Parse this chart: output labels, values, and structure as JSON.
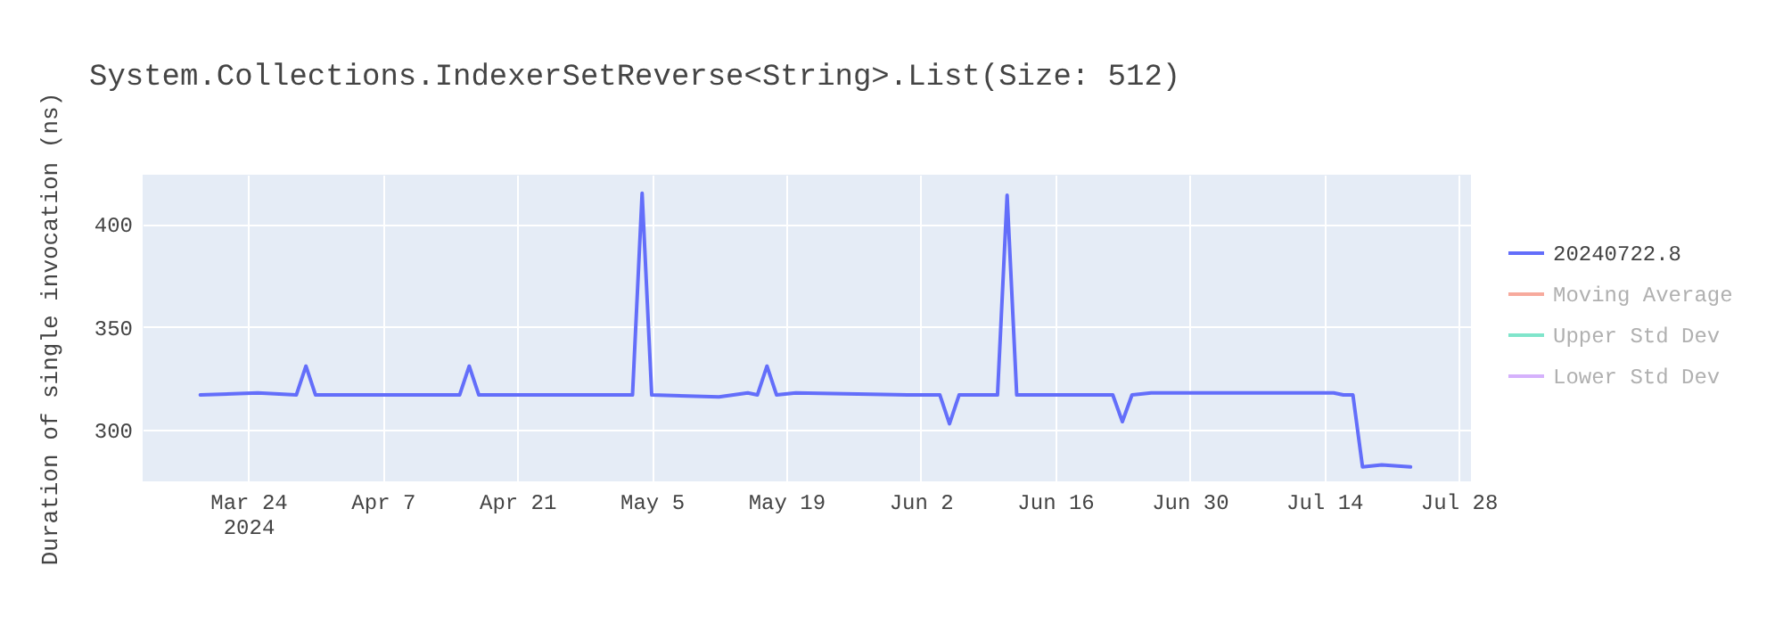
{
  "chart_data": {
    "type": "line",
    "title": "System.Collections.IndexerSetReverse<String>.List(Size: 512)",
    "ylabel": "Duration of single invocation (ns)",
    "x": [
      "2024-03-19",
      "2024-03-25",
      "2024-03-29",
      "2024-03-30",
      "2024-03-31",
      "2024-04-10",
      "2024-04-15",
      "2024-04-16",
      "2024-04-17",
      "2024-04-28",
      "2024-05-03",
      "2024-05-04",
      "2024-05-05",
      "2024-05-12",
      "2024-05-15",
      "2024-05-16",
      "2024-05-17",
      "2024-05-18",
      "2024-05-20",
      "2024-06-01",
      "2024-06-04",
      "2024-06-05",
      "2024-06-06",
      "2024-06-10",
      "2024-06-11",
      "2024-06-12",
      "2024-06-22",
      "2024-06-23",
      "2024-06-24",
      "2024-06-26",
      "2024-07-15",
      "2024-07-16",
      "2024-07-17",
      "2024-07-18",
      "2024-07-20",
      "2024-07-23"
    ],
    "series": [
      {
        "name": "20240722.8",
        "color": "#636efa",
        "values": [
          317,
          318,
          317,
          331,
          317,
          317,
          317,
          331,
          317,
          317,
          317,
          415,
          317,
          316,
          318,
          317,
          331,
          317,
          318,
          317,
          317,
          303,
          317,
          317,
          414,
          317,
          317,
          304,
          317,
          318,
          318,
          317,
          317,
          282,
          283,
          282
        ]
      },
      {
        "name": "Moving Average",
        "color": "#f7aa9d",
        "values": [
          null,
          null,
          null,
          null,
          null,
          null,
          null,
          null,
          null,
          null,
          null,
          null,
          null,
          null,
          null,
          null,
          null,
          null,
          null,
          null,
          null,
          null,
          null,
          null,
          null,
          null,
          null,
          null,
          null,
          null,
          null,
          null,
          null,
          null,
          null,
          null
        ]
      },
      {
        "name": "Upper Std Dev",
        "color": "#80e5cb",
        "values": [
          null,
          null,
          null,
          null,
          null,
          null,
          null,
          null,
          null,
          null,
          null,
          null,
          null,
          null,
          null,
          null,
          null,
          null,
          null,
          null,
          null,
          null,
          null,
          null,
          null,
          null,
          null,
          null,
          null,
          null,
          null,
          null,
          null,
          null,
          null,
          null
        ]
      },
      {
        "name": "Lower Std Dev",
        "color": "#d5b1fc",
        "values": [
          null,
          null,
          null,
          null,
          null,
          null,
          null,
          null,
          null,
          null,
          null,
          null,
          null,
          null,
          null,
          null,
          null,
          null,
          null,
          null,
          null,
          null,
          null,
          null,
          null,
          null,
          null,
          null,
          null,
          null,
          null,
          null,
          null,
          null,
          null,
          null
        ]
      }
    ],
    "xlim": [
      "2024-03-13",
      "2024-07-29T07:00"
    ],
    "xticks": [
      {
        "value": "2024-03-24",
        "label": "Mar 24\n2024"
      },
      {
        "value": "2024-04-07",
        "label": "Apr 7"
      },
      {
        "value": "2024-04-21",
        "label": "Apr 21"
      },
      {
        "value": "2024-05-05",
        "label": "May 5"
      },
      {
        "value": "2024-05-19",
        "label": "May 19"
      },
      {
        "value": "2024-06-02",
        "label": "Jun 2"
      },
      {
        "value": "2024-06-16",
        "label": "Jun 16"
      },
      {
        "value": "2024-06-30",
        "label": "Jun 30"
      },
      {
        "value": "2024-07-14",
        "label": "Jul 14"
      },
      {
        "value": "2024-07-28",
        "label": "Jul 28"
      }
    ],
    "ylim": [
      275,
      424
    ],
    "yticks": [
      300,
      350,
      400
    ],
    "grid": true,
    "legend": "right",
    "marker": "none",
    "line_style": "solid"
  }
}
